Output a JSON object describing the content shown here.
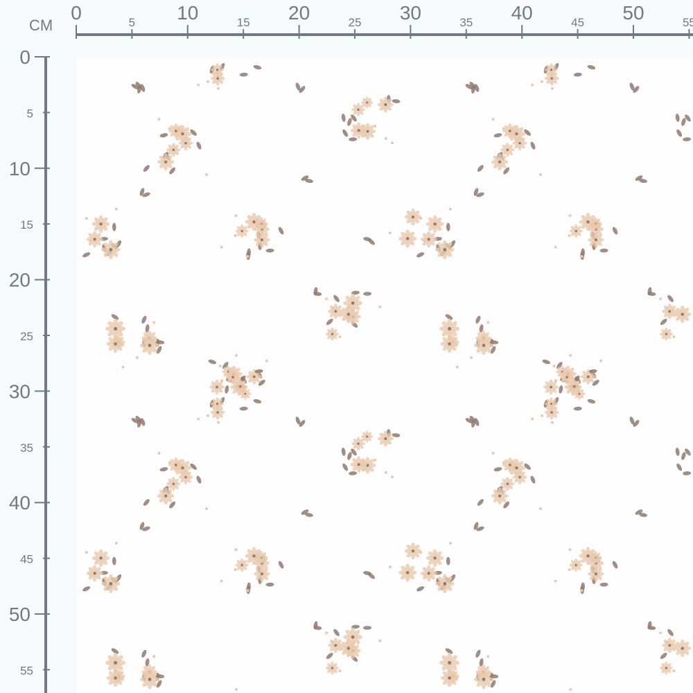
{
  "ruler": {
    "unit": "CM",
    "horizontal_labels": [
      "0",
      "5",
      "10",
      "15",
      "20",
      "25",
      "30",
      "35",
      "40",
      "45",
      "50",
      "55"
    ],
    "vertical_labels": [
      "0",
      "5",
      "10",
      "15",
      "20",
      "25",
      "30",
      "35",
      "40",
      "45",
      "50",
      "55"
    ],
    "color": "#6f7a82"
  },
  "fabric": {
    "pattern": "floral bouquets",
    "background_color": "#fdfdfd",
    "petal_color": "#e8c9ae",
    "leaf_color": "#8f7a6e"
  }
}
